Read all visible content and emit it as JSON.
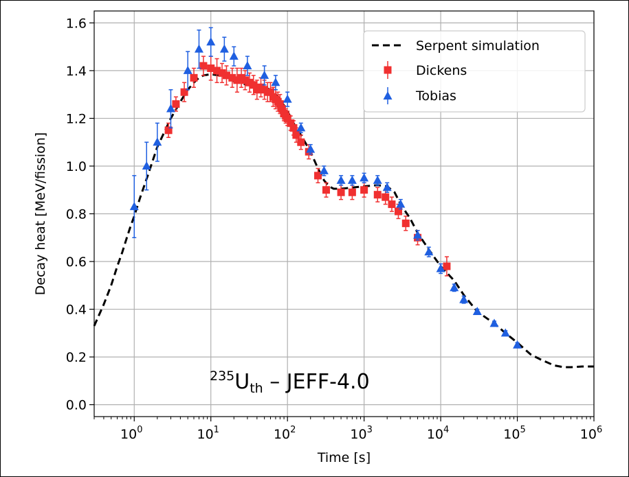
{
  "chart_data": {
    "type": "scatter",
    "title": "",
    "xlabel": "Time [s]",
    "ylabel": "Decay heat [MeV/fission]",
    "xscale": "log",
    "xlim": [
      0.3,
      1000000
    ],
    "ylim": [
      -0.05,
      1.65
    ],
    "grid": true,
    "legend_placement": "top-right",
    "x_ticks": [
      {
        "value": 1,
        "base": "10",
        "exp": "0"
      },
      {
        "value": 10,
        "base": "10",
        "exp": "1"
      },
      {
        "value": 100,
        "base": "10",
        "exp": "2"
      },
      {
        "value": 1000,
        "base": "10",
        "exp": "3"
      },
      {
        "value": 10000,
        "base": "10",
        "exp": "4"
      },
      {
        "value": 100000,
        "base": "10",
        "exp": "5"
      },
      {
        "value": 1000000,
        "base": "10",
        "exp": "6"
      }
    ],
    "y_ticks": [
      {
        "value": 0.0,
        "label": "0.0"
      },
      {
        "value": 0.2,
        "label": "0.2"
      },
      {
        "value": 0.4,
        "label": "0.4"
      },
      {
        "value": 0.6,
        "label": "0.6"
      },
      {
        "value": 0.8,
        "label": "0.8"
      },
      {
        "value": 1.0,
        "label": "1.0"
      },
      {
        "value": 1.2,
        "label": "1.2"
      },
      {
        "value": 1.4,
        "label": "1.4"
      },
      {
        "value": 1.6,
        "label": "1.6"
      }
    ],
    "annotation": {
      "mass_number": "235",
      "element": "U",
      "subscript": "th",
      "text": " – JEFF-4.0"
    },
    "series": [
      {
        "name": "Serpent simulation",
        "kind": "line",
        "style": "dashed",
        "color": "#000000",
        "points": [
          [
            0.3,
            0.33
          ],
          [
            0.4,
            0.42
          ],
          [
            0.5,
            0.5
          ],
          [
            0.6,
            0.58
          ],
          [
            0.7,
            0.64
          ],
          [
            0.8,
            0.7
          ],
          [
            0.9,
            0.75
          ],
          [
            1.0,
            0.79
          ],
          [
            1.2,
            0.87
          ],
          [
            1.5,
            0.96
          ],
          [
            2.0,
            1.08
          ],
          [
            3.0,
            1.2
          ],
          [
            4.0,
            1.27
          ],
          [
            5.0,
            1.32
          ],
          [
            6.0,
            1.35
          ],
          [
            7.0,
            1.37
          ],
          [
            8.0,
            1.38
          ],
          [
            10,
            1.385
          ],
          [
            13,
            1.38
          ],
          [
            17,
            1.37
          ],
          [
            20,
            1.355
          ],
          [
            30,
            1.34
          ],
          [
            40,
            1.335
          ],
          [
            50,
            1.33
          ],
          [
            60,
            1.32
          ],
          [
            70,
            1.3
          ],
          [
            80,
            1.28
          ],
          [
            100,
            1.23
          ],
          [
            120,
            1.18
          ],
          [
            150,
            1.13
          ],
          [
            200,
            1.06
          ],
          [
            250,
            0.99
          ],
          [
            300,
            0.94
          ],
          [
            350,
            0.915
          ],
          [
            400,
            0.905
          ],
          [
            500,
            0.905
          ],
          [
            700,
            0.91
          ],
          [
            1000,
            0.915
          ],
          [
            1500,
            0.92
          ],
          [
            2000,
            0.915
          ],
          [
            2500,
            0.89
          ],
          [
            3000,
            0.84
          ],
          [
            4000,
            0.78
          ],
          [
            5000,
            0.72
          ],
          [
            7000,
            0.65
          ],
          [
            10000,
            0.58
          ],
          [
            15000,
            0.52
          ],
          [
            20000,
            0.46
          ],
          [
            30000,
            0.39
          ],
          [
            50000,
            0.34
          ],
          [
            70000,
            0.3
          ],
          [
            100000,
            0.26
          ],
          [
            150000,
            0.21
          ],
          [
            200000,
            0.19
          ],
          [
            300000,
            0.165
          ],
          [
            400000,
            0.157
          ],
          [
            500000,
            0.157
          ],
          [
            700000,
            0.16
          ],
          [
            1000000,
            0.16
          ]
        ]
      },
      {
        "name": "Dickens",
        "kind": "markers",
        "marker": "square",
        "color": "#f03030",
        "points": [
          [
            2.8,
            1.15,
            0.03
          ],
          [
            3.5,
            1.26,
            0.03
          ],
          [
            4.5,
            1.31,
            0.04
          ],
          [
            6.0,
            1.37,
            0.04
          ],
          [
            8.0,
            1.42,
            0.04
          ],
          [
            10,
            1.41,
            0.05
          ],
          [
            12,
            1.4,
            0.05
          ],
          [
            14,
            1.39,
            0.04
          ],
          [
            16,
            1.38,
            0.04
          ],
          [
            19,
            1.37,
            0.04
          ],
          [
            22,
            1.36,
            0.05
          ],
          [
            25,
            1.37,
            0.04
          ],
          [
            28,
            1.36,
            0.04
          ],
          [
            32,
            1.35,
            0.04
          ],
          [
            36,
            1.34,
            0.04
          ],
          [
            40,
            1.32,
            0.04
          ],
          [
            45,
            1.33,
            0.04
          ],
          [
            50,
            1.32,
            0.04
          ],
          [
            55,
            1.31,
            0.04
          ],
          [
            60,
            1.31,
            0.04
          ],
          [
            65,
            1.29,
            0.04
          ],
          [
            70,
            1.28,
            0.04
          ],
          [
            75,
            1.27,
            0.04
          ],
          [
            80,
            1.26,
            0.04
          ],
          [
            85,
            1.24,
            0.03
          ],
          [
            90,
            1.22,
            0.03
          ],
          [
            95,
            1.21,
            0.03
          ],
          [
            100,
            1.2,
            0.03
          ],
          [
            110,
            1.18,
            0.03
          ],
          [
            120,
            1.16,
            0.03
          ],
          [
            130,
            1.13,
            0.03
          ],
          [
            150,
            1.1,
            0.03
          ],
          [
            190,
            1.06,
            0.03
          ],
          [
            250,
            0.96,
            0.03
          ],
          [
            320,
            0.9,
            0.03
          ],
          [
            500,
            0.89,
            0.03
          ],
          [
            700,
            0.89,
            0.03
          ],
          [
            1000,
            0.9,
            0.03
          ],
          [
            1500,
            0.88,
            0.03
          ],
          [
            1900,
            0.87,
            0.03
          ],
          [
            2300,
            0.84,
            0.03
          ],
          [
            2800,
            0.81,
            0.03
          ],
          [
            3500,
            0.76,
            0.03
          ],
          [
            5000,
            0.7,
            0.03
          ],
          [
            12000,
            0.58,
            0.04
          ]
        ]
      },
      {
        "name": "Tobias",
        "kind": "markers",
        "marker": "triangle",
        "color": "#1f5fe0",
        "points": [
          [
            1.0,
            0.83,
            0.13
          ],
          [
            1.45,
            1.0,
            0.1
          ],
          [
            2.0,
            1.1,
            0.08
          ],
          [
            3.0,
            1.24,
            0.08
          ],
          [
            5.0,
            1.4,
            0.08
          ],
          [
            7.0,
            1.49,
            0.08
          ],
          [
            10,
            1.52,
            0.06
          ],
          [
            15,
            1.49,
            0.05
          ],
          [
            20,
            1.46,
            0.04
          ],
          [
            30,
            1.42,
            0.04
          ],
          [
            50,
            1.38,
            0.04
          ],
          [
            70,
            1.35,
            0.03
          ],
          [
            100,
            1.28,
            0.03
          ],
          [
            150,
            1.16,
            0.02
          ],
          [
            200,
            1.07,
            0.02
          ],
          [
            300,
            0.98,
            0.02
          ],
          [
            500,
            0.94,
            0.02
          ],
          [
            700,
            0.94,
            0.02
          ],
          [
            1000,
            0.95,
            0.02
          ],
          [
            1500,
            0.94,
            0.02
          ],
          [
            2000,
            0.91,
            0.02
          ],
          [
            3000,
            0.84,
            0.02
          ],
          [
            5000,
            0.71,
            0.02
          ],
          [
            7000,
            0.64,
            0.02
          ],
          [
            10000,
            0.57,
            0.02
          ],
          [
            15000,
            0.49,
            0.015
          ],
          [
            20000,
            0.44,
            0.015
          ],
          [
            30000,
            0.39,
            0.01
          ],
          [
            50000,
            0.34,
            0.01
          ],
          [
            70000,
            0.3,
            0.01
          ],
          [
            100000,
            0.25,
            0.01
          ]
        ]
      }
    ]
  }
}
